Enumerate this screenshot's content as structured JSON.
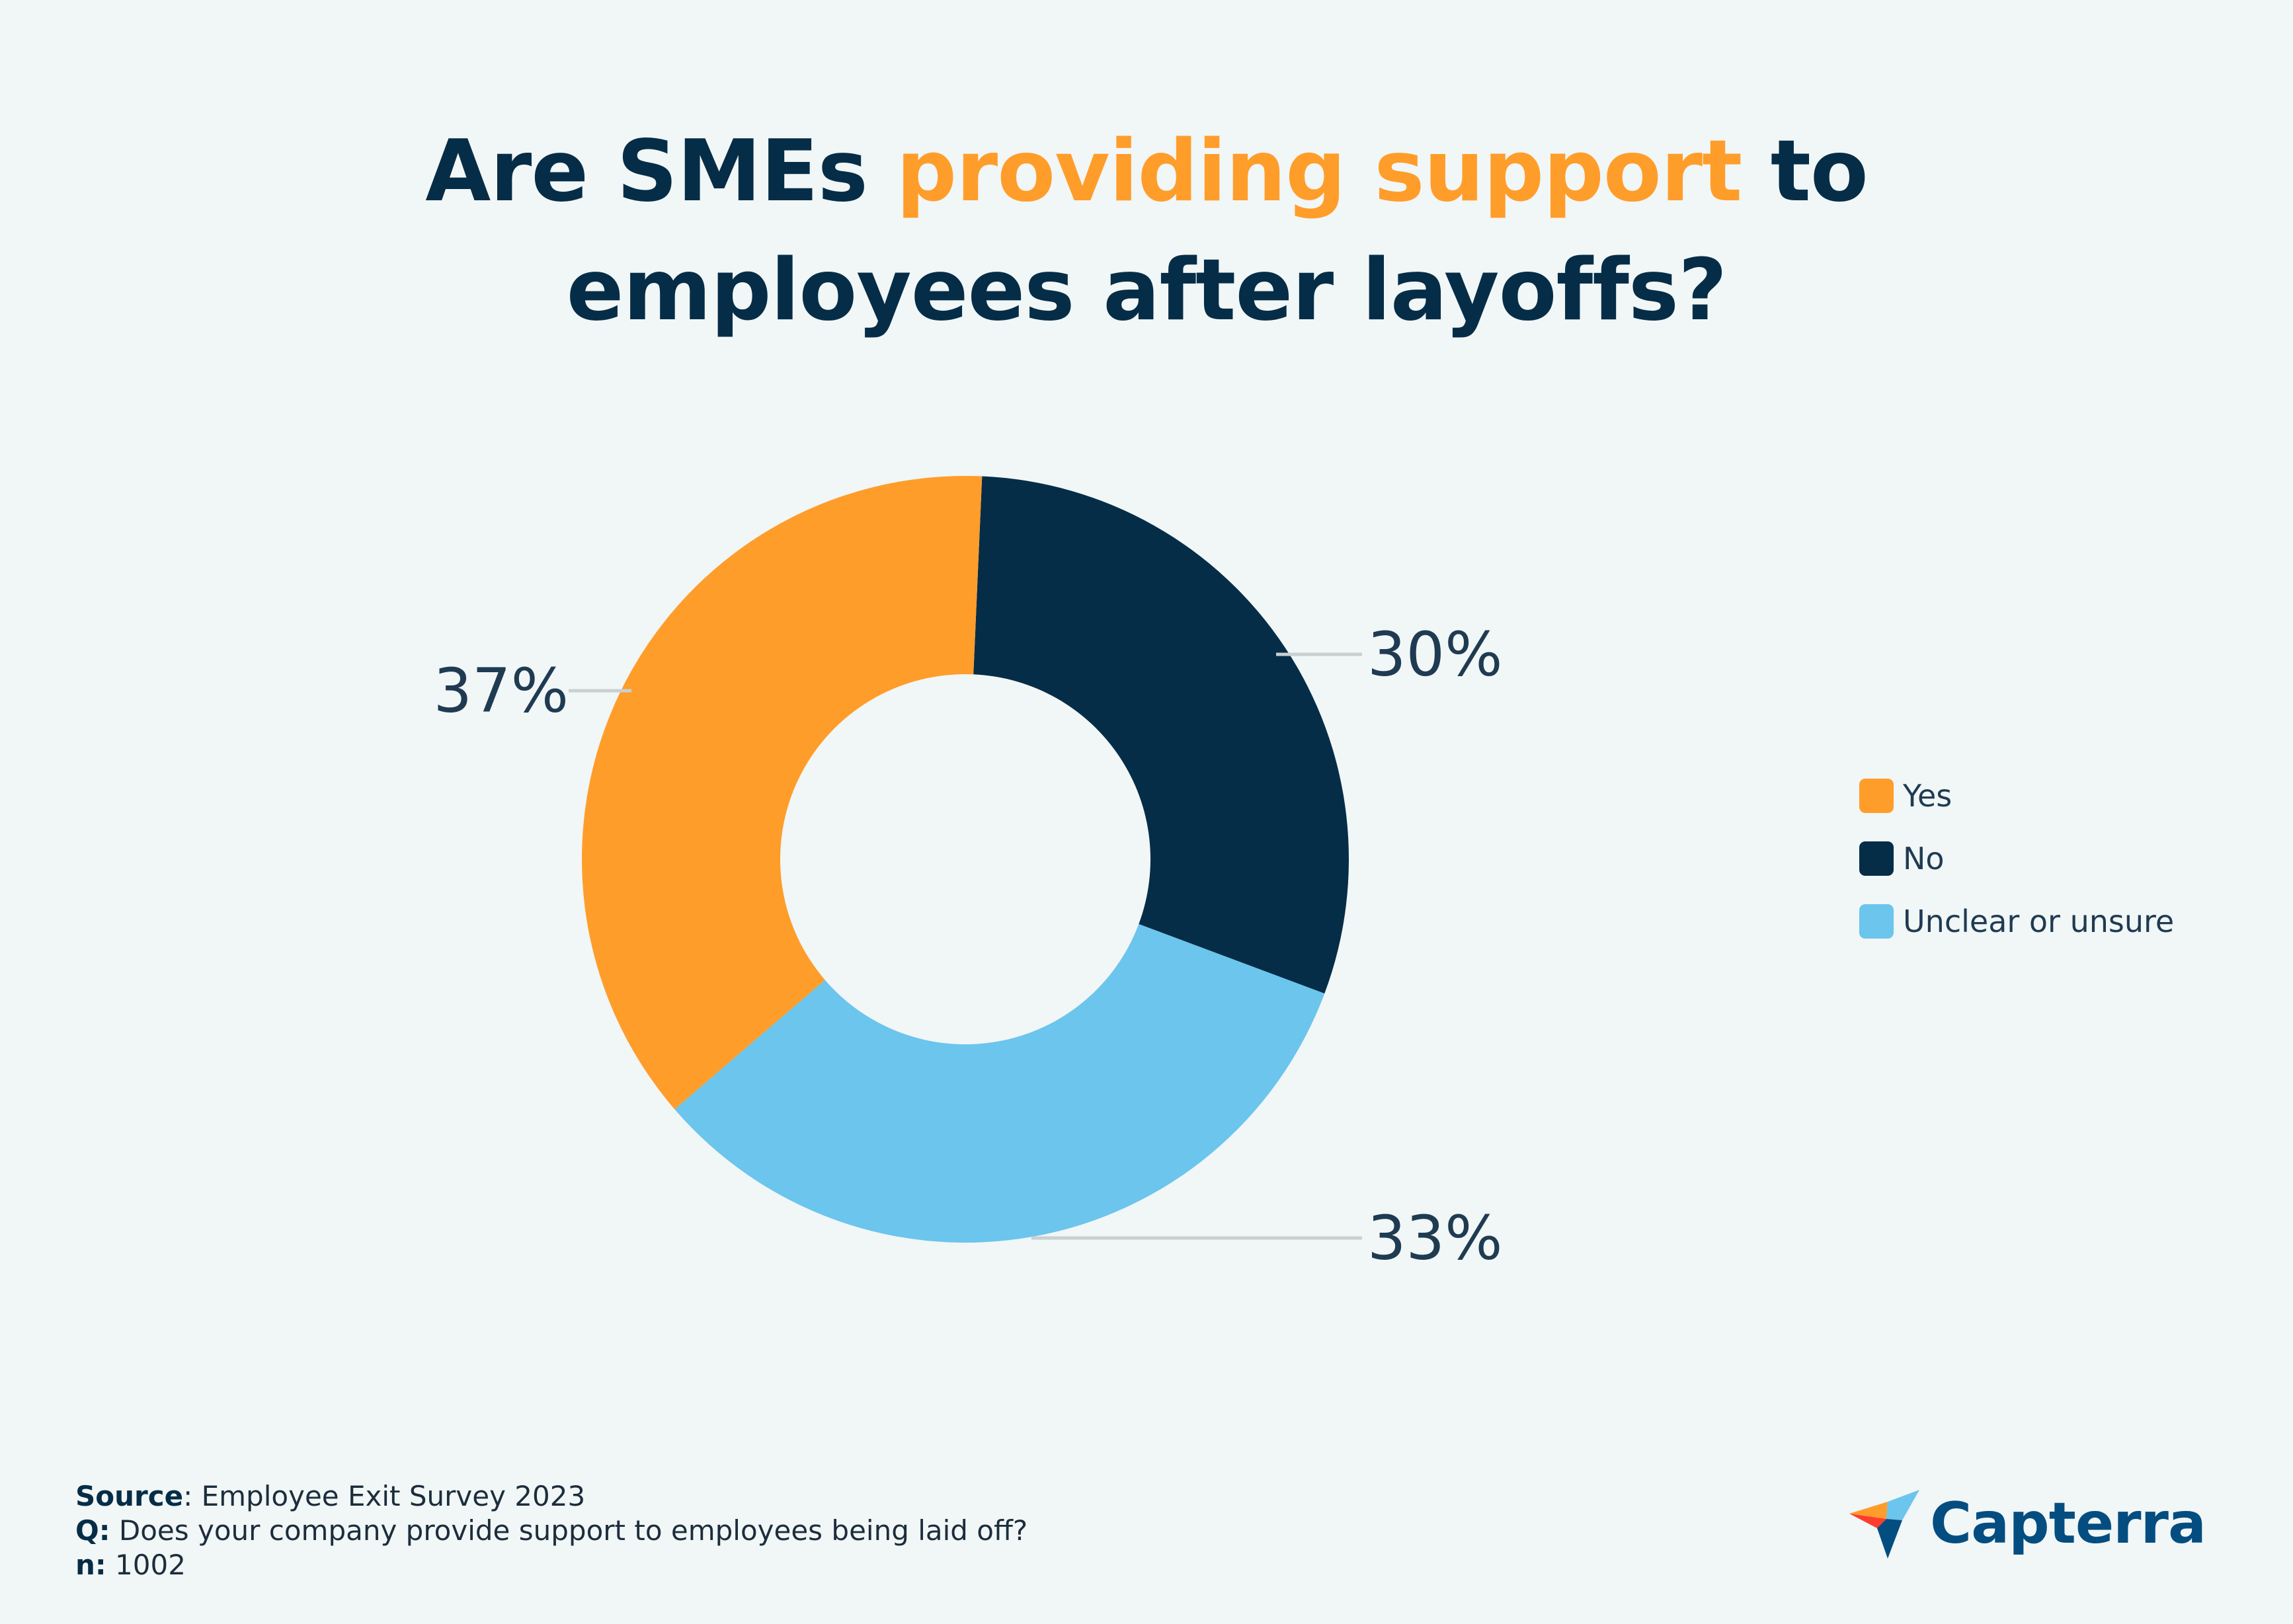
{
  "title": {
    "part1": "Are SMEs ",
    "highlight": "providing support",
    "part2": " to",
    "line2": "employees after layoffs?"
  },
  "chart_data": {
    "type": "pie",
    "variant": "donut",
    "slices": [
      {
        "label": "Yes",
        "value": 37,
        "display": "37%",
        "color": "#ff9d2a"
      },
      {
        "label": "No",
        "value": 30,
        "display": "30%",
        "color": "#062d47"
      },
      {
        "label": "Unclear or unsure",
        "value": 33,
        "display": "33%",
        "color": "#6bc5ed"
      }
    ],
    "legend_position": "right"
  },
  "footer": {
    "source_label": "Source",
    "source_value": ": Employee Exit Survey 2023",
    "q_label": "Q:",
    "q_value": " Does your company provide support to employees being laid off?",
    "n_label": "n:",
    "n_value": " 1002"
  },
  "brand": {
    "name": "Capterra",
    "logo_icon": "capterra-arrow-icon"
  }
}
